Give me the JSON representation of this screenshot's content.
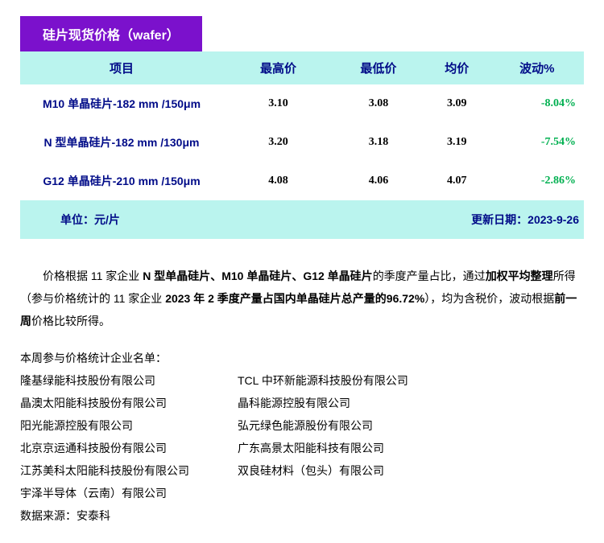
{
  "title": "硅片现货价格（wafer）",
  "columns": [
    "项目",
    "最高价",
    "最低价",
    "均价",
    "波动%"
  ],
  "rows": [
    {
      "name": "M10 单晶硅片-182 mm /150μm",
      "high": "3.10",
      "low": "3.08",
      "avg": "3.09",
      "chg": "-8.04%"
    },
    {
      "name": "N 型单晶硅片-182 mm /130μm",
      "high": "3.20",
      "low": "3.18",
      "avg": "3.19",
      "chg": "-7.54%"
    },
    {
      "name": "G12 单晶硅片-210 mm /150μm",
      "high": "4.08",
      "low": "4.06",
      "avg": "4.07",
      "chg": "-2.86%"
    }
  ],
  "unit_label": "单位：元/片",
  "update_label": "更新日期：2023-9-26",
  "paragraph": {
    "p1": "价格根据 11 家企业 ",
    "b1": "N 型单晶硅片、M10 单晶硅片、G12 单晶硅片",
    "p2": "的季度产量占比，通过",
    "b2": "加权平均整理",
    "p3": "所得（参与价格统计的 11 家企业 ",
    "b3": "2023 年 2 季度产量占国内单晶硅片总产量的96.72%",
    "p4": "），均为含税价，波动根据",
    "b4": "前一周",
    "p5": "价格比较所得。"
  },
  "list_title": "本周参与价格统计企业名单：",
  "companies_left": [
    "隆基绿能科技股份有限公司",
    "晶澳太阳能科技股份有限公司",
    "阳光能源控股有限公司",
    "北京京运通科技股份有限公司",
    "江苏美科太阳能科技股份有限公司",
    "宇泽半导体（云南）有限公司"
  ],
  "companies_right": [
    "TCL 中环新能源科技股份有限公司",
    "晶科能源控股有限公司",
    "弘元绿色能源股份有限公司",
    "广东高景太阳能科技有限公司",
    "双良硅材料（包头）有限公司"
  ],
  "source": "数据来源：安泰科",
  "colors": {
    "title_bg": "#7b11cc",
    "header_bg": "#baf4ee",
    "link_text": "#000b88",
    "change_neg": "#00b050"
  }
}
